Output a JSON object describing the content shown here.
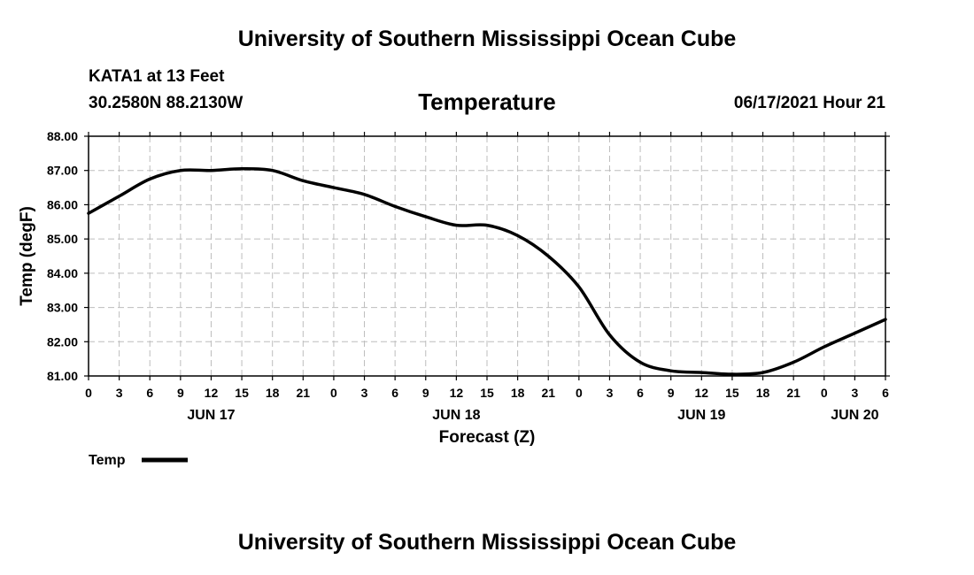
{
  "header": {
    "top_title": "University of Southern Mississippi Ocean Cube",
    "station": "KATA1 at 13 Feet",
    "coords": "30.2580N  88.2130W",
    "variable": "Temperature",
    "run_time": "06/17/2021 Hour 21",
    "bottom_title": "University of Southern Mississippi Ocean Cube"
  },
  "chart_data": {
    "type": "line",
    "title": "Temperature",
    "xlabel": "Forecast (Z)",
    "ylabel": "Temp (degF)",
    "ylim": [
      81,
      88
    ],
    "xlim": [
      0,
      78
    ],
    "y_ticks": [
      "81.00",
      "82.00",
      "83.00",
      "84.00",
      "85.00",
      "86.00",
      "87.00",
      "88.00"
    ],
    "x_tick_labels": [
      "0",
      "3",
      "6",
      "9",
      "12",
      "15",
      "18",
      "21",
      "0",
      "3",
      "6",
      "9",
      "12",
      "15",
      "18",
      "21",
      "0",
      "3",
      "6",
      "9",
      "12",
      "15",
      "18",
      "21",
      "0",
      "3",
      "6"
    ],
    "day_labels": [
      {
        "hour": 12,
        "label": "JUN 17"
      },
      {
        "hour": 36,
        "label": "JUN 18"
      },
      {
        "hour": 60,
        "label": "JUN 19"
      },
      {
        "hour": 75,
        "label": "JUN 20"
      }
    ],
    "grid": true,
    "legend": {
      "label": "Temp",
      "placement": "bottom-left"
    },
    "series": [
      {
        "name": "Temp",
        "x": [
          0,
          3,
          6,
          9,
          12,
          15,
          18,
          21,
          24,
          27,
          30,
          33,
          36,
          39,
          42,
          45,
          48,
          51,
          54,
          57,
          60,
          63,
          66,
          69,
          72,
          75,
          78
        ],
        "values": [
          85.75,
          86.25,
          86.75,
          87.0,
          87.0,
          87.05,
          87.0,
          86.7,
          86.5,
          86.3,
          85.95,
          85.65,
          85.4,
          85.4,
          85.1,
          84.5,
          83.6,
          82.2,
          81.4,
          81.15,
          81.1,
          81.05,
          81.1,
          81.4,
          81.85,
          82.25,
          82.65
        ]
      }
    ]
  }
}
